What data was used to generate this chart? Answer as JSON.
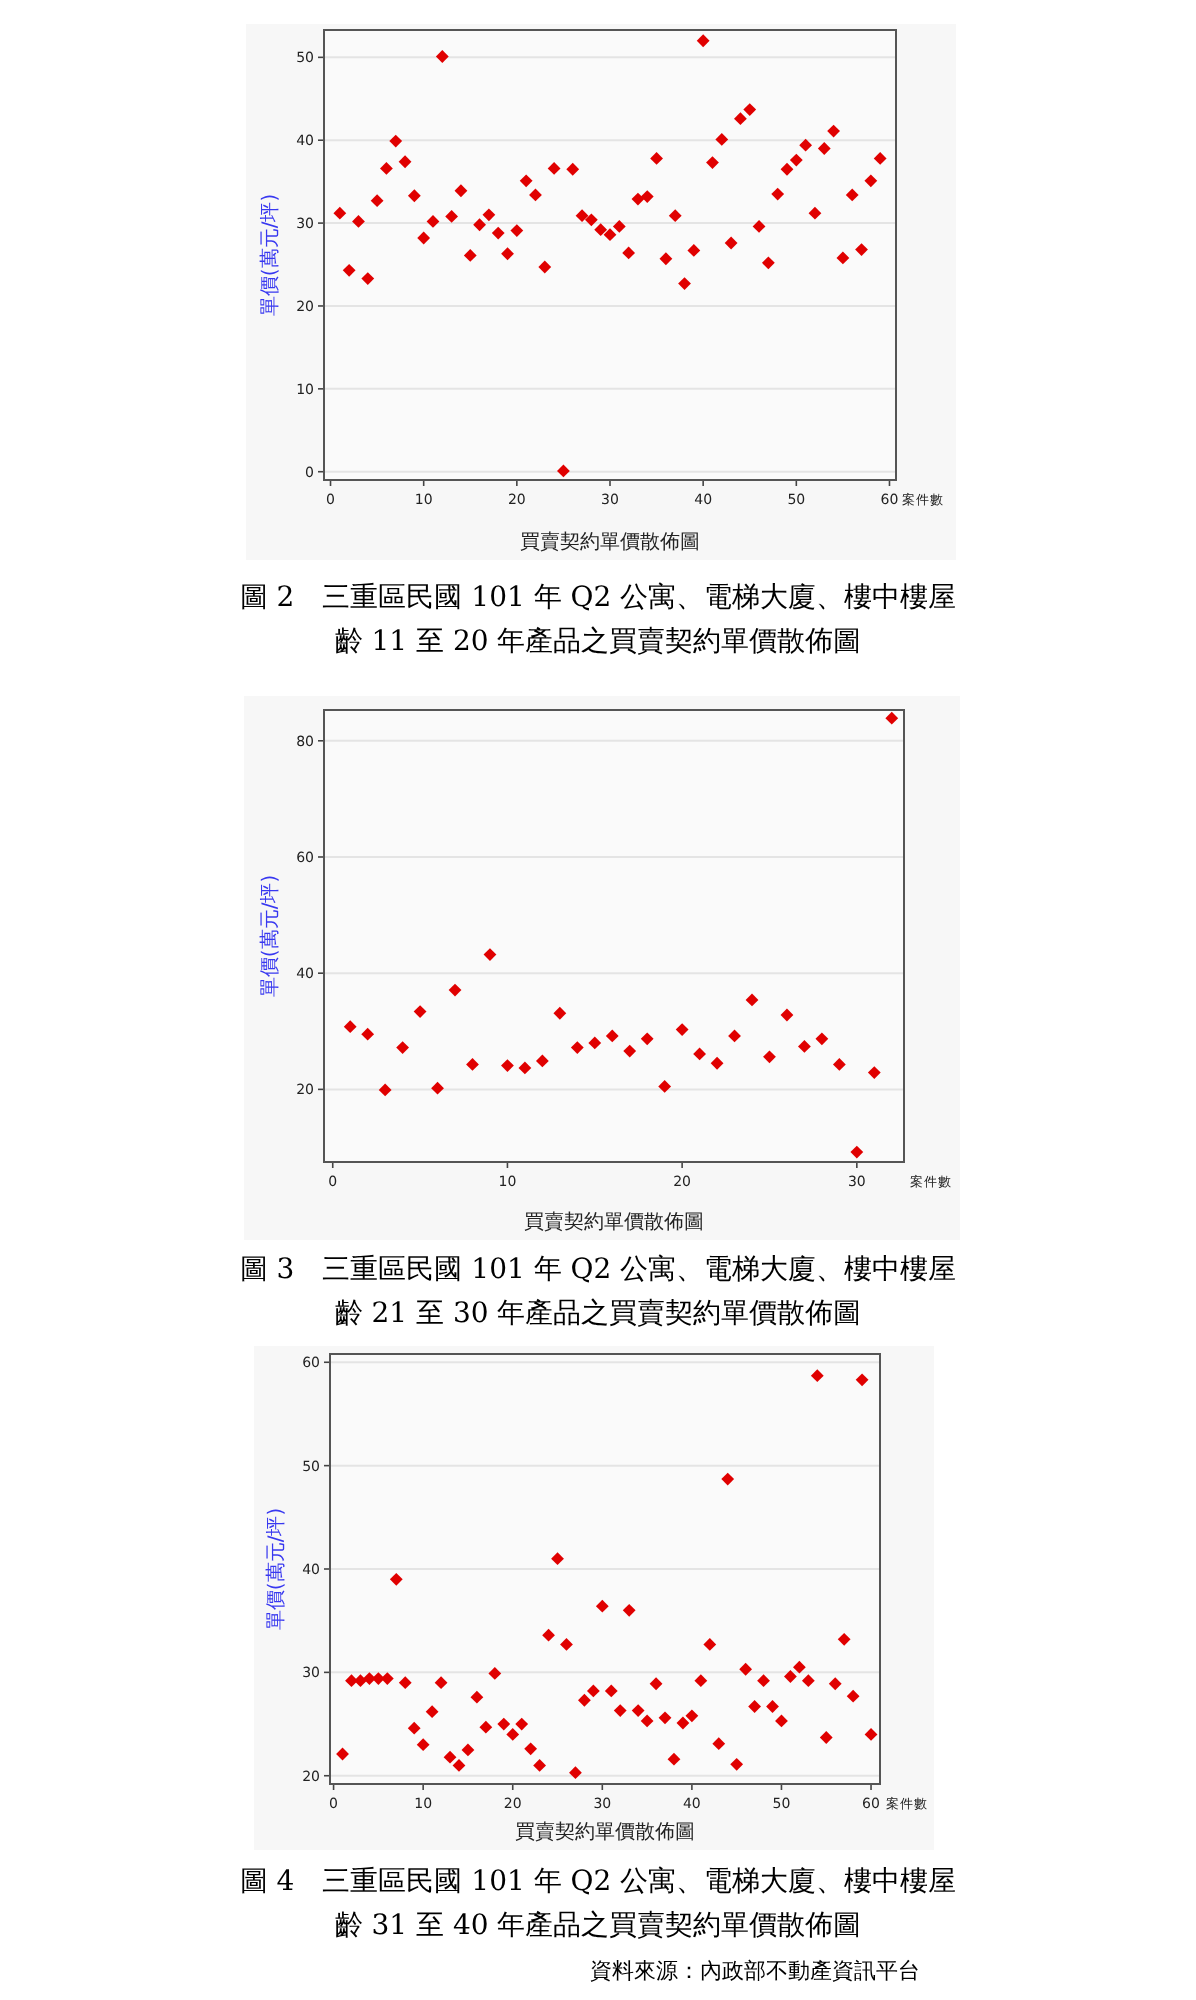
{
  "chart_data": [
    {
      "type": "scatter",
      "title": "圖 2　三重區民國 101 年 Q2 公寓、電梯大廈、樓中樓屋齡 11 至 20 年產品之買賣契約單價散佈圖",
      "subtitle": "買賣契約單價散佈圖",
      "xlabel": "案件數",
      "ylabel": "單價(萬元/坪)",
      "marker": "diamond",
      "grid": "y",
      "xlim": [
        -0.7,
        60.7
      ],
      "ylim": [
        -1,
        53.3
      ],
      "xticks": [
        0,
        10,
        20,
        30,
        40,
        50,
        60
      ],
      "yticks": [
        0,
        10,
        20,
        30,
        40,
        50
      ],
      "color": "#e00000",
      "x": [
        1,
        2,
        3,
        4,
        5,
        6,
        7,
        8,
        9,
        10,
        11,
        12,
        13,
        14,
        15,
        16,
        17,
        18,
        19,
        20,
        21,
        22,
        23,
        24,
        25,
        26,
        27,
        28,
        29,
        30,
        31,
        32,
        33,
        34,
        35,
        36,
        37,
        38,
        39,
        40,
        41,
        42,
        43,
        44,
        45,
        46,
        47,
        48,
        49,
        50,
        51,
        52,
        53,
        54,
        55,
        56,
        57,
        58,
        59
      ],
      "values": [
        31.2,
        24.3,
        30.2,
        23.3,
        32.7,
        36.6,
        39.9,
        37.4,
        33.3,
        28.2,
        30.2,
        50.1,
        30.8,
        33.9,
        26.1,
        29.8,
        31.0,
        28.8,
        26.3,
        29.1,
        35.1,
        33.4,
        24.7,
        36.6,
        0.1,
        36.5,
        30.9,
        30.4,
        29.2,
        28.6,
        29.6,
        26.4,
        32.9,
        33.2,
        37.8,
        25.7,
        30.9,
        22.7,
        26.7,
        52.0,
        37.3,
        40.1,
        27.6,
        42.6,
        43.7,
        29.6,
        25.2,
        33.5,
        36.5,
        37.6,
        39.4,
        31.2,
        39.0,
        41.1,
        25.8,
        33.4,
        26.8,
        35.1,
        37.8
      ]
    },
    {
      "type": "scatter",
      "title": "圖 3　三重區民國 101 年 Q2 公寓、電梯大廈、樓中樓屋齡 21 至 30 年產品之買賣契約單價散佈圖",
      "subtitle": "買賣契約單價散佈圖",
      "xlabel": "案件數",
      "ylabel": "單價(萬元/坪)",
      "marker": "diamond",
      "grid": "y",
      "xlim": [
        -0.5,
        32.7
      ],
      "ylim": [
        7.5,
        85.3
      ],
      "xticks": [
        0,
        10,
        20,
        30
      ],
      "yticks": [
        20,
        40,
        60,
        80
      ],
      "color": "#e00000",
      "x": [
        1,
        2,
        3,
        4,
        5,
        6,
        7,
        8,
        9,
        10,
        11,
        12,
        13,
        14,
        15,
        16,
        17,
        18,
        19,
        20,
        21,
        22,
        23,
        24,
        25,
        26,
        27,
        28,
        29,
        30,
        31,
        32
      ],
      "values": [
        30.8,
        29.5,
        19.9,
        27.2,
        33.4,
        20.2,
        37.1,
        24.3,
        43.2,
        24.1,
        23.7,
        24.9,
        33.1,
        27.2,
        28.0,
        29.2,
        26.6,
        28.7,
        20.5,
        30.3,
        26.1,
        24.5,
        29.2,
        35.4,
        25.6,
        32.8,
        27.4,
        28.7,
        24.3,
        9.2,
        22.9,
        83.9
      ]
    },
    {
      "type": "scatter",
      "title": "圖 4　三重區民國 101 年 Q2 公寓、電梯大廈、樓中樓屋齡 31 至 40 年產品之買賣契約單價散佈圖",
      "subtitle": "買賣契約單價散佈圖",
      "xlabel": "案件數",
      "ylabel": "單價(萬元/坪)",
      "marker": "diamond",
      "grid": "y",
      "xlim": [
        -0.4,
        61
      ],
      "ylim": [
        19.2,
        60.8
      ],
      "xticks": [
        0,
        10,
        20,
        30,
        40,
        50,
        60
      ],
      "yticks": [
        20,
        30,
        40,
        50,
        60
      ],
      "color": "#e00000",
      "annotations": [
        "資料來源：內政部不動產資訊平台"
      ],
      "x": [
        1,
        2,
        3,
        4,
        5,
        6,
        7,
        8,
        9,
        10,
        11,
        12,
        13,
        14,
        15,
        16,
        17,
        18,
        19,
        20,
        21,
        22,
        23,
        24,
        25,
        26,
        27,
        28,
        29,
        30,
        31,
        32,
        33,
        34,
        35,
        36,
        37,
        38,
        39,
        40,
        41,
        42,
        43,
        44,
        45,
        46,
        47,
        48,
        49,
        50,
        51,
        52,
        53,
        54,
        55,
        56,
        57,
        58,
        59,
        60
      ],
      "values": [
        22.1,
        29.2,
        29.2,
        29.4,
        29.4,
        29.4,
        39.0,
        29.0,
        24.6,
        23.0,
        26.2,
        29.0,
        21.8,
        21.0,
        22.5,
        27.6,
        24.7,
        29.9,
        25.0,
        24.0,
        25.0,
        22.6,
        21.0,
        33.6,
        41.0,
        32.7,
        20.3,
        27.3,
        28.2,
        36.4,
        28.2,
        26.3,
        36.0,
        26.3,
        25.3,
        28.9,
        25.6,
        21.6,
        25.1,
        25.8,
        29.2,
        32.7,
        23.1,
        48.7,
        21.1,
        30.3,
        26.7,
        29.2,
        26.7,
        25.3,
        29.6,
        30.5,
        29.2,
        58.7,
        23.7,
        28.9,
        33.2,
        27.7,
        58.3,
        24.0
      ]
    }
  ]
}
